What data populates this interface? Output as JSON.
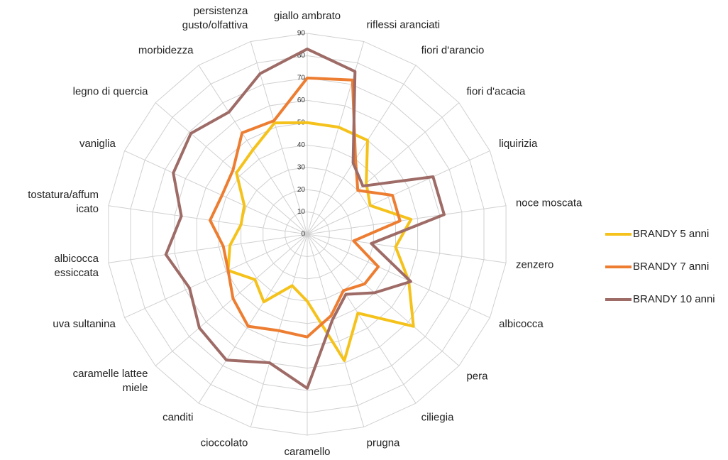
{
  "chart_data": {
    "type": "radar",
    "categories": [
      "giallo ambrato",
      "riflessi aranciati",
      "fiori d'arancio",
      "fiori d'acacia",
      "liquirizia",
      "noce moscata",
      "zenzero",
      "albicocca",
      "pera",
      "ciliegia",
      "prugna",
      "caramello",
      "cioccolato",
      "canditi",
      "caramelle lattee\nmiele",
      "uva sultanina",
      "albicocca\nessiccata",
      "tostatura/affum\nicato",
      "vaniglia",
      "legno di quercia",
      "morbidezza",
      "persistenza\ngusto/olfattiva"
    ],
    "series": [
      {
        "name": "BRANDY 5 anni",
        "color": "#f5c21b",
        "values": [
          50,
          50,
          50,
          35,
          31,
          47,
          40,
          50,
          63,
          42,
          59,
          30,
          24,
          36,
          31,
          39,
          35,
          30,
          31,
          42,
          45,
          52
        ]
      },
      {
        "name": "BRANDY 7 anni",
        "color": "#ed7d31",
        "values": [
          70,
          72,
          40,
          30,
          42,
          42,
          21,
          35,
          34,
          30,
          38,
          46,
          45,
          49,
          44,
          39,
          38,
          44,
          42,
          44,
          54,
          53
        ]
      },
      {
        "name": "BRANDY 10 anni",
        "color": "#9e6b66",
        "values": [
          83,
          76,
          38,
          33,
          62,
          62,
          29,
          51,
          40,
          32,
          40,
          69,
          60,
          67,
          64,
          58,
          64,
          57,
          66,
          69,
          65,
          75
        ]
      }
    ],
    "ylim": [
      0,
      90
    ],
    "yticks": [
      0,
      10,
      20,
      30,
      40,
      50,
      60,
      70,
      80,
      90
    ],
    "grid": true,
    "legend": "right"
  }
}
